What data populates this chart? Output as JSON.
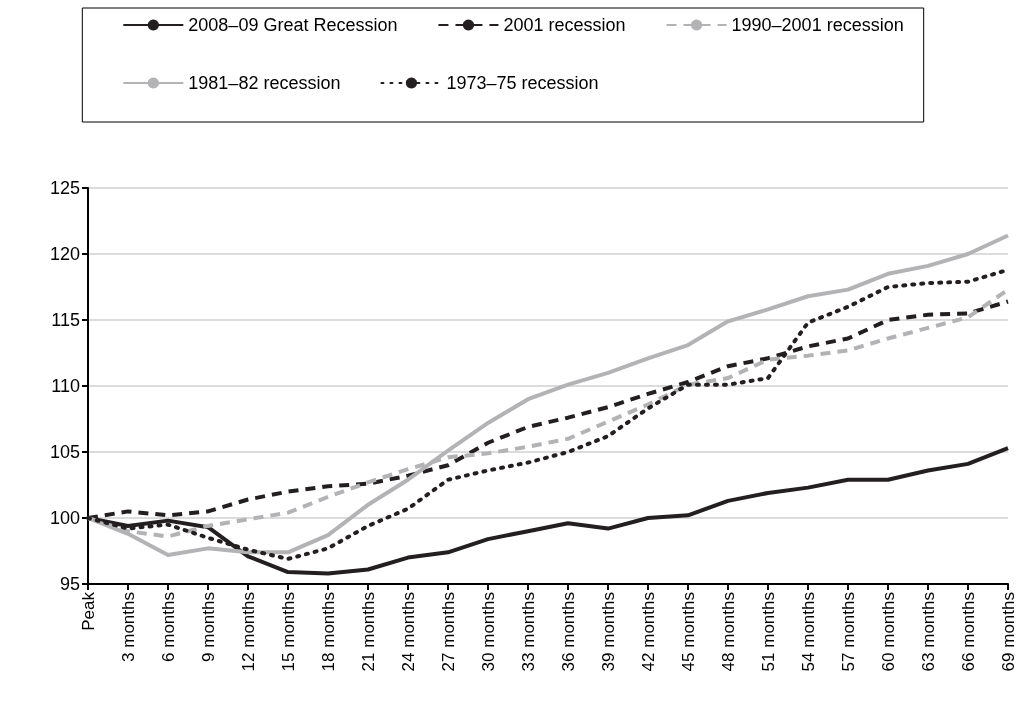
{
  "chart_data": {
    "type": "line",
    "categories": [
      "Peak",
      "3 months",
      "6 months",
      "9 months",
      "12 months",
      "15 months",
      "18 months",
      "21 months",
      "24 months",
      "27 months",
      "30 months",
      "33 months",
      "36 months",
      "39 months",
      "42 months",
      "45 months",
      "48 months",
      "51 months",
      "54 months",
      "57 months",
      "60 months",
      "63 months",
      "66 months",
      "69 months"
    ],
    "series": [
      {
        "name": "2008–09 Great Recession",
        "color": "#231f20",
        "line_style": "solid",
        "values": [
          100,
          99.4,
          99.8,
          99.3,
          97.1,
          95.9,
          95.8,
          96.1,
          97.0,
          97.4,
          98.4,
          99.0,
          99.6,
          99.2,
          100.0,
          100.2,
          101.3,
          101.9,
          102.3,
          102.9,
          102.9,
          103.6,
          104.1,
          105.3
        ]
      },
      {
        "name": "2001 recession",
        "color": "#231f20",
        "line_style": "dashed",
        "values": [
          100,
          100.5,
          100.2,
          100.5,
          101.4,
          102.0,
          102.4,
          102.6,
          103.2,
          104.0,
          105.7,
          106.9,
          107.6,
          108.4,
          109.4,
          110.3,
          111.5,
          112.1,
          113.0,
          113.6,
          115.0,
          115.4,
          115.5,
          116.4
        ]
      },
      {
        "name": "1990–2001 recession",
        "color": "#b3b3b6",
        "line_style": "dashed",
        "values": [
          100,
          99.0,
          98.6,
          99.4,
          99.9,
          100.4,
          101.6,
          102.7,
          103.7,
          104.6,
          104.9,
          105.4,
          106.0,
          107.3,
          108.6,
          110.1,
          110.6,
          112.0,
          112.3,
          112.7,
          113.6,
          114.4,
          115.2,
          117.3
        ]
      },
      {
        "name": "1981–82 recession",
        "color": "#b3b3b6",
        "line_style": "solid",
        "values": [
          100,
          98.8,
          97.2,
          97.7,
          97.4,
          97.4,
          98.7,
          101.0,
          102.9,
          105.1,
          107.2,
          109.0,
          110.1,
          111.0,
          112.1,
          113.1,
          114.9,
          115.8,
          116.8,
          117.3,
          118.5,
          119.1,
          120.0,
          121.4
        ]
      },
      {
        "name": "1973–75 recession",
        "color": "#231f20",
        "line_style": "dotted",
        "values": [
          100,
          99.2,
          99.5,
          98.5,
          97.6,
          96.9,
          97.7,
          99.4,
          100.7,
          102.9,
          103.6,
          104.2,
          105.0,
          106.2,
          108.3,
          110.1,
          110.1,
          110.6,
          114.8,
          116.0,
          117.5,
          117.8,
          117.9,
          118.8
        ]
      }
    ],
    "ylim": [
      95,
      125
    ],
    "yticks": [
      95,
      100,
      105,
      110,
      115,
      120,
      125
    ],
    "grid": "y",
    "legend": "top",
    "marker": "none"
  }
}
